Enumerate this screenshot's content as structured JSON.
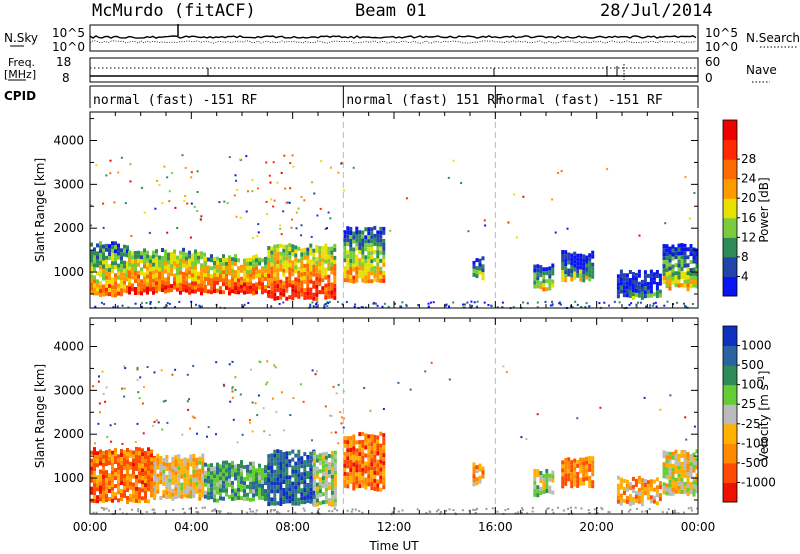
{
  "header": {
    "station": "McMurdo (fitACF)",
    "beam": "Beam 01",
    "date": "28/Jul/2014"
  },
  "sky_panel": {
    "left_label": "N.Sky",
    "left_ticks": [
      "10^5",
      "10^0"
    ],
    "right_label": "N.Search",
    "right_ticks": [
      "10^5",
      "10^0"
    ]
  },
  "freq_panel": {
    "left_label_top": "Freq.",
    "left_label_unit": "[MHz]",
    "left_ticks": [
      "18",
      "8"
    ],
    "right_label": "Nave",
    "right_ticks": [
      "60",
      "0"
    ]
  },
  "cpid_panel": {
    "label": "CPID",
    "segments": [
      {
        "label": "normal (fast) -151 RF",
        "start_h": 0,
        "end_h": 10
      },
      {
        "label": "normal (fast) 151 RF",
        "start_h": 10,
        "end_h": 16
      },
      {
        "label": "normal (fast) -151 RF",
        "start_h": 16,
        "end_h": 24
      }
    ]
  },
  "chart_data": [
    {
      "type": "heatmap",
      "name": "power",
      "ylabel": "Slant Range [km]",
      "xlabel": "",
      "xlim": [
        0,
        24
      ],
      "ylim": [
        180,
        4650
      ],
      "yticks": [
        1000,
        2000,
        3000,
        4000
      ],
      "ytick_labels": [
        "1000",
        "2000",
        "3000",
        "4000"
      ],
      "xticks": [
        0,
        4,
        8,
        12,
        16,
        20,
        24
      ],
      "vlines": [
        10,
        16
      ],
      "colorbar": {
        "label": "Power [dB]",
        "ticks": [
          "4",
          "8",
          "12",
          "16",
          "20",
          "24",
          "28"
        ],
        "colors": [
          "#0a14f0",
          "#2244aa",
          "#2e8b57",
          "#7acc3c",
          "#e8e000",
          "#ff9a00",
          "#ff6a00",
          "#ff2a00",
          "#ee0000"
        ]
      },
      "regions": [
        {
          "x0": 0,
          "x1": 1.5,
          "ymin": 500,
          "ymax": 1650,
          "scheme": "power",
          "level": 0.75
        },
        {
          "x0": 1.5,
          "x1": 4.5,
          "ymin": 560,
          "ymax": 1500,
          "scheme": "power",
          "level": 0.9
        },
        {
          "x0": 4.5,
          "x1": 7,
          "ymin": 530,
          "ymax": 1350,
          "scheme": "power",
          "level": 0.95
        },
        {
          "x0": 7,
          "x1": 9.7,
          "ymin": 430,
          "ymax": 1600,
          "scheme": "power",
          "level": 0.95
        },
        {
          "x0": 10,
          "x1": 11.6,
          "ymin": 780,
          "ymax": 2000,
          "scheme": "power",
          "level": 0.7
        },
        {
          "x0": 15.1,
          "x1": 15.5,
          "ymin": 900,
          "ymax": 1300,
          "scheme": "power",
          "level": 0.5
        },
        {
          "x0": 17.5,
          "x1": 18.3,
          "ymin": 650,
          "ymax": 1150,
          "scheme": "power",
          "level": 0.6
        },
        {
          "x0": 18.6,
          "x1": 19.8,
          "ymin": 850,
          "ymax": 1450,
          "scheme": "power",
          "level": 0.5
        },
        {
          "x0": 20.8,
          "x1": 22.5,
          "ymin": 450,
          "ymax": 1000,
          "scheme": "power",
          "level": 0.3
        },
        {
          "x0": 22.6,
          "x1": 24,
          "ymin": 650,
          "ymax": 1600,
          "scheme": "power",
          "level": 0.6
        }
      ]
    },
    {
      "type": "heatmap",
      "name": "velocity",
      "ylabel": "Slant Range [km]",
      "xlabel": "Time UT",
      "xlim": [
        0,
        24
      ],
      "ylim": [
        180,
        4650
      ],
      "yticks": [
        1000,
        2000,
        3000,
        4000
      ],
      "ytick_labels": [
        "1000",
        "2000",
        "3000",
        "4000"
      ],
      "xticks": [
        0,
        4,
        8,
        12,
        16,
        20,
        24
      ],
      "xtick_labels": [
        "00:00",
        "04:00",
        "08:00",
        "12:00",
        "16:00",
        "20:00",
        "00:00"
      ],
      "vlines": [
        10,
        16
      ],
      "colorbar": {
        "label": "Velocity [m s",
        "label_superscript": "-1",
        "label_close": "]",
        "ticks": [
          "-1000",
          "-500",
          "-100",
          "-25",
          "25",
          "100",
          "500",
          "1000"
        ],
        "colors": [
          "#ee1100",
          "#ff4a00",
          "#ff8a00",
          "#ffb000",
          "#bbbbbb",
          "#66cc33",
          "#2e8b57",
          "#2a64a0",
          "#1030c0"
        ]
      },
      "regions": [
        {
          "x0": 0,
          "x1": 2.5,
          "ymin": 500,
          "ymax": 1650,
          "scheme": "velocity",
          "level": 0.2
        },
        {
          "x0": 2.5,
          "x1": 4.5,
          "ymin": 560,
          "ymax": 1500,
          "scheme": "velocity",
          "level": 0.4
        },
        {
          "x0": 4.5,
          "x1": 7,
          "ymin": 530,
          "ymax": 1350,
          "scheme": "velocity",
          "level": 0.7
        },
        {
          "x0": 7,
          "x1": 8.8,
          "ymin": 430,
          "ymax": 1600,
          "scheme": "velocity",
          "level": 0.9
        },
        {
          "x0": 8.8,
          "x1": 9.7,
          "ymin": 430,
          "ymax": 1600,
          "scheme": "velocity",
          "level": 0.55
        },
        {
          "x0": 10,
          "x1": 11.6,
          "ymin": 780,
          "ymax": 2000,
          "scheme": "velocity",
          "level": 0.2
        },
        {
          "x0": 15.1,
          "x1": 15.5,
          "ymin": 900,
          "ymax": 1300,
          "scheme": "velocity",
          "level": 0.3
        },
        {
          "x0": 17.5,
          "x1": 18.3,
          "ymin": 650,
          "ymax": 1150,
          "scheme": "velocity",
          "level": 0.55
        },
        {
          "x0": 18.6,
          "x1": 19.8,
          "ymin": 850,
          "ymax": 1450,
          "scheme": "velocity",
          "level": 0.25
        },
        {
          "x0": 20.8,
          "x1": 22.5,
          "ymin": 450,
          "ymax": 1000,
          "scheme": "velocity",
          "level": 0.3
        },
        {
          "x0": 22.6,
          "x1": 24,
          "ymin": 650,
          "ymax": 1600,
          "scheme": "velocity",
          "level": 0.45
        }
      ]
    }
  ]
}
